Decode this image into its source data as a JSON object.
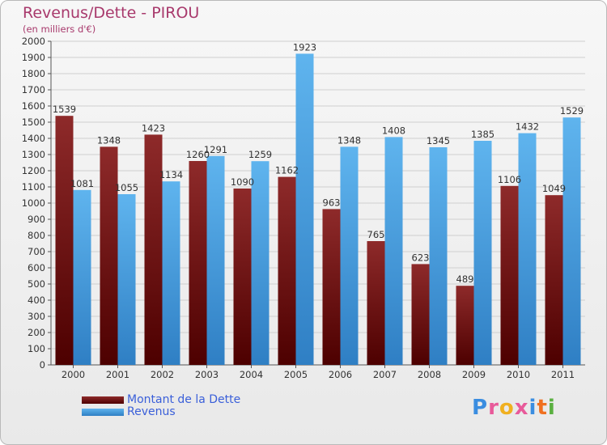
{
  "chart_data": {
    "type": "bar",
    "title": "Revenus/Dette - PIROU",
    "subtitle": "(en milliers d'€)",
    "categories": [
      "2000",
      "2001",
      "2002",
      "2003",
      "2004",
      "2005",
      "2006",
      "2007",
      "2008",
      "2009",
      "2010",
      "2011"
    ],
    "series": [
      {
        "name": "Montant de la Dette",
        "color": "#7a1a1a",
        "values": [
          1539,
          1348,
          1423,
          1260,
          1090,
          1162,
          963,
          765,
          623,
          489,
          1106,
          1049
        ]
      },
      {
        "name": "Revenus",
        "color": "#4ea7e6",
        "values": [
          1081,
          1055,
          1134,
          1291,
          1259,
          1923,
          1348,
          1408,
          1345,
          1385,
          1432,
          1529
        ]
      }
    ],
    "ylim": [
      0,
      2000
    ],
    "ytick_step": 100,
    "grid": true,
    "legend_position": "bottom-left"
  },
  "logo": {
    "text": "Proxiti"
  }
}
